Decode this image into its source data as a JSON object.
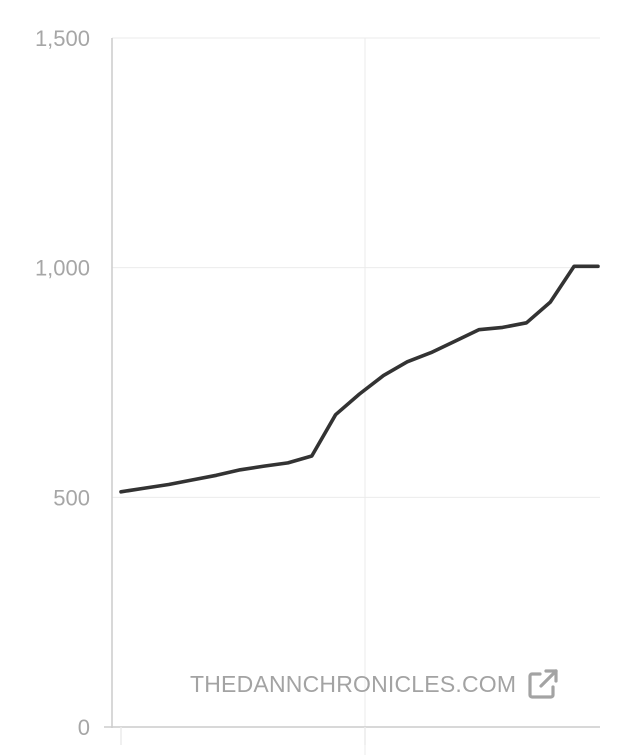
{
  "chart_data": {
    "type": "line",
    "title": "",
    "xlabel": "",
    "ylabel": "",
    "ylim": [
      0,
      1500
    ],
    "yticks": [
      0,
      500,
      1000,
      1500
    ],
    "ytick_labels": [
      "0",
      "500",
      "1,000",
      "1,500"
    ],
    "grid": true,
    "series": [
      {
        "color": "#333333",
        "x": [
          0,
          5,
          10,
          15,
          20,
          25,
          30,
          35,
          40,
          45,
          50,
          55,
          60,
          65,
          70,
          75,
          80,
          85,
          90,
          95,
          100
        ],
        "values": [
          512,
          520,
          528,
          538,
          548,
          560,
          568,
          575,
          590,
          680,
          725,
          765,
          795,
          815,
          840,
          865,
          870,
          880,
          925,
          1003,
          1003
        ]
      }
    ]
  },
  "watermark": {
    "text": "THEDANNCHRONICLES.COM",
    "icon": "external-link-icon"
  },
  "colors": {
    "line": "#333333",
    "grid": "#ebebeb",
    "axis": "#cccccc",
    "label": "#a6a6a6"
  }
}
